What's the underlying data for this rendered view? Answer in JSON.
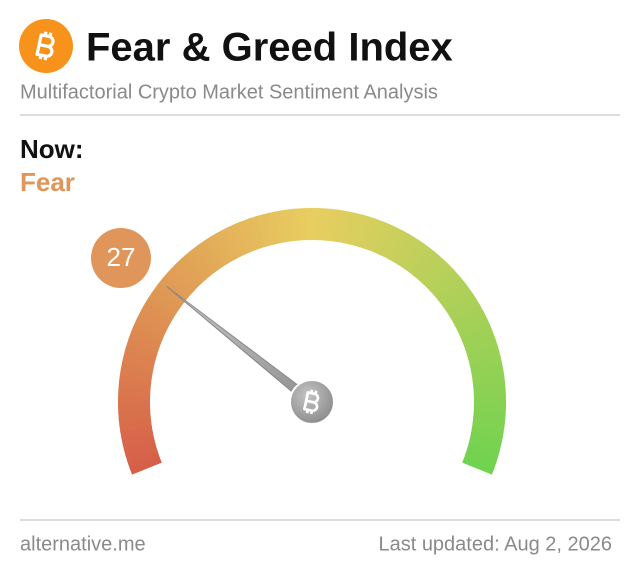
{
  "chart_data": {
    "type": "gauge",
    "title": "Fear & Greed Index",
    "subtitle": "Multifactorial Crypto Market Sentiment Analysis",
    "now_label": "Now:",
    "classification": "Fear",
    "value": 27,
    "ylim": [
      0,
      100
    ],
    "color": "#e0965a",
    "source": "alternative.me",
    "updated": "Last updated: Aug 2, 2026"
  }
}
